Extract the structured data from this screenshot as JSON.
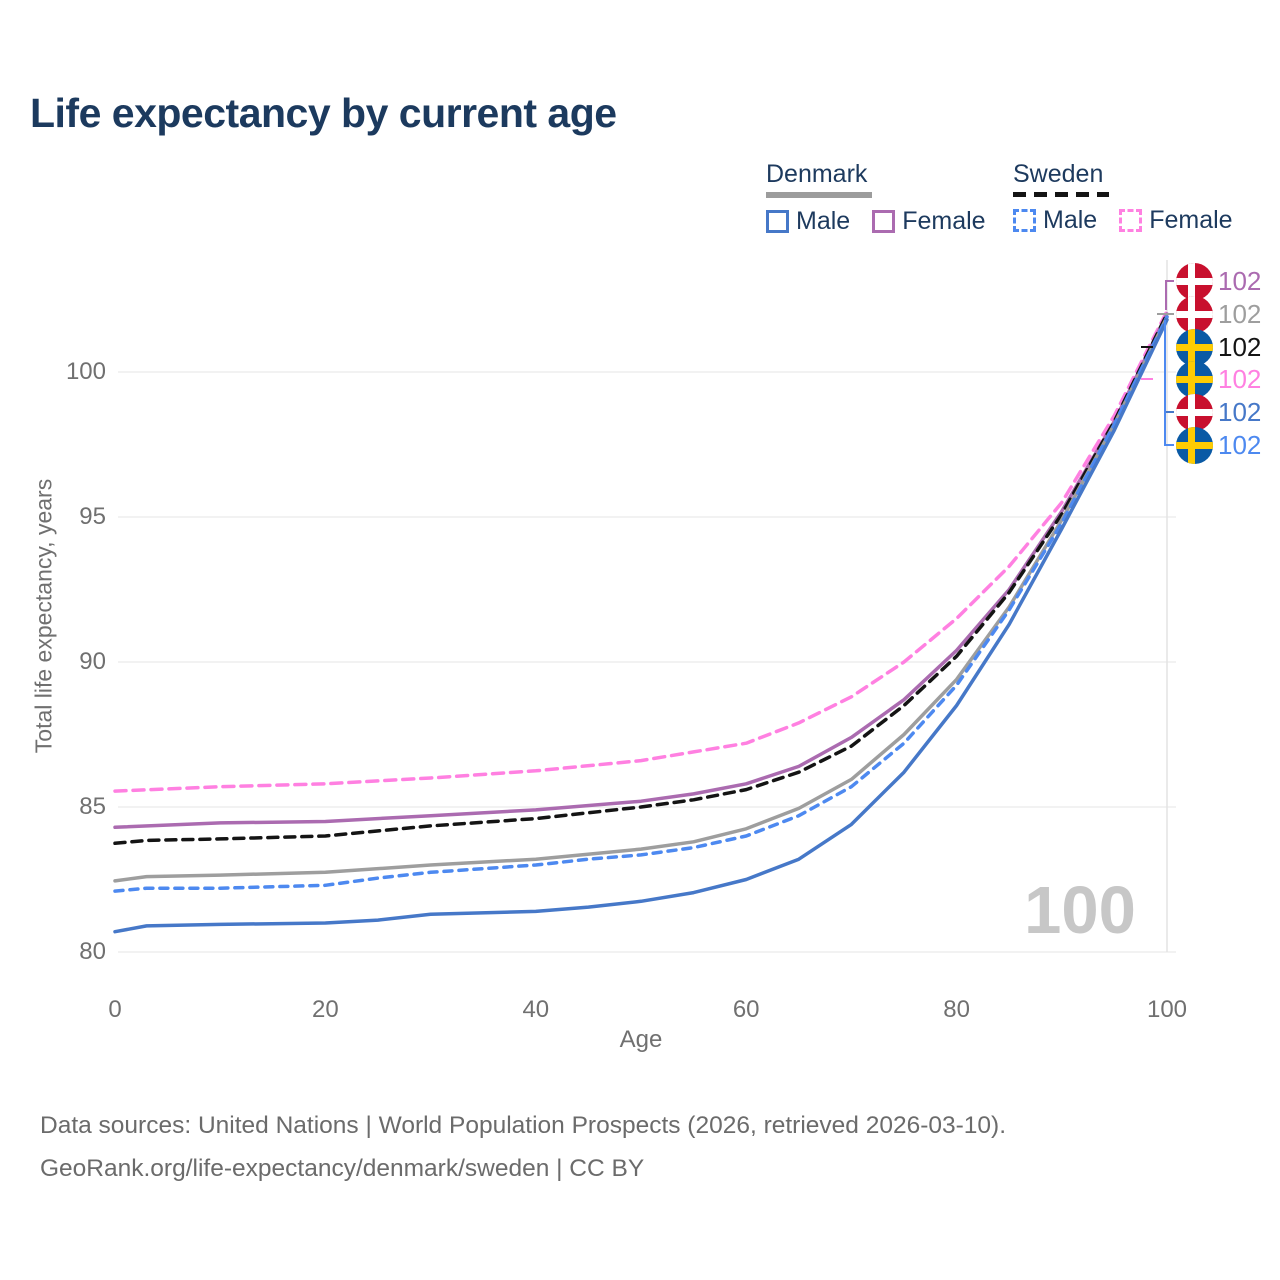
{
  "title": "Life expectancy by current age",
  "legend": {
    "denmark_label": "Denmark",
    "sweden_label": "Sweden",
    "male_label": "Male",
    "female_label": "Female"
  },
  "chart_data": {
    "type": "line",
    "title": "Life expectancy by current age",
    "xlabel": "Age",
    "ylabel": "Total life expectancy, years",
    "x_ticks": [
      0,
      20,
      40,
      60,
      80,
      100
    ],
    "y_ticks": [
      80,
      85,
      90,
      95,
      100
    ],
    "xlim": [
      0,
      100
    ],
    "ylim": [
      80,
      103
    ],
    "grid": "horizontal",
    "legend_position": "top-right",
    "grid_color": "#ededed",
    "crosshair_color": "#e3e3e3",
    "hover_age_indicator": "100",
    "series": [
      {
        "id": "denmark_male",
        "name": "Denmark Male",
        "country": "Denmark",
        "sex": "Male",
        "color": "#4678c8",
        "dash": null,
        "points": [
          [
            0,
            80.7
          ],
          [
            3,
            80.9
          ],
          [
            10,
            80.95
          ],
          [
            20,
            81.0
          ],
          [
            25,
            81.1
          ],
          [
            30,
            81.3
          ],
          [
            40,
            81.4
          ],
          [
            45,
            81.55
          ],
          [
            50,
            81.75
          ],
          [
            55,
            82.05
          ],
          [
            60,
            82.5
          ],
          [
            65,
            83.2
          ],
          [
            70,
            84.4
          ],
          [
            75,
            86.2
          ],
          [
            80,
            88.5
          ],
          [
            85,
            91.3
          ],
          [
            90,
            94.6
          ],
          [
            95,
            98.0
          ],
          [
            100,
            101.8
          ]
        ]
      },
      {
        "id": "denmark_female",
        "name": "Denmark Female",
        "country": "Denmark",
        "sex": "Female",
        "color": "#ab6bb0",
        "dash": null,
        "points": [
          [
            0,
            84.3
          ],
          [
            10,
            84.45
          ],
          [
            20,
            84.5
          ],
          [
            30,
            84.7
          ],
          [
            40,
            84.9
          ],
          [
            50,
            85.2
          ],
          [
            55,
            85.45
          ],
          [
            60,
            85.8
          ],
          [
            65,
            86.4
          ],
          [
            70,
            87.4
          ],
          [
            75,
            88.7
          ],
          [
            80,
            90.4
          ],
          [
            85,
            92.5
          ],
          [
            90,
            95.2
          ],
          [
            95,
            98.3
          ],
          [
            100,
            102.0
          ]
        ]
      },
      {
        "id": "denmark_total",
        "name": "Denmark (all)",
        "country": "Denmark",
        "sex": "Both",
        "color": "#9e9e9e",
        "dash": null,
        "points": [
          [
            0,
            82.45
          ],
          [
            3,
            82.6
          ],
          [
            10,
            82.65
          ],
          [
            20,
            82.75
          ],
          [
            30,
            83.0
          ],
          [
            40,
            83.2
          ],
          [
            50,
            83.55
          ],
          [
            55,
            83.8
          ],
          [
            60,
            84.25
          ],
          [
            65,
            84.95
          ],
          [
            70,
            85.95
          ],
          [
            75,
            87.5
          ],
          [
            80,
            89.4
          ],
          [
            85,
            91.9
          ],
          [
            90,
            94.9
          ],
          [
            95,
            98.2
          ],
          [
            100,
            101.9
          ]
        ]
      },
      {
        "id": "sweden_male",
        "name": "Sweden Male",
        "country": "Sweden",
        "sex": "Male",
        "color": "#4d89f0",
        "dash": "8 7",
        "points": [
          [
            0,
            82.1
          ],
          [
            3,
            82.2
          ],
          [
            10,
            82.2
          ],
          [
            20,
            82.3
          ],
          [
            25,
            82.55
          ],
          [
            30,
            82.75
          ],
          [
            40,
            83.0
          ],
          [
            45,
            83.2
          ],
          [
            50,
            83.35
          ],
          [
            55,
            83.6
          ],
          [
            60,
            84.0
          ],
          [
            65,
            84.7
          ],
          [
            70,
            85.7
          ],
          [
            75,
            87.2
          ],
          [
            80,
            89.2
          ],
          [
            85,
            91.8
          ],
          [
            90,
            94.8
          ],
          [
            95,
            98.2
          ],
          [
            100,
            101.9
          ]
        ]
      },
      {
        "id": "sweden_female",
        "name": "Sweden Female",
        "country": "Sweden",
        "sex": "Female",
        "color": "#ff80e1",
        "dash": "11 7",
        "points": [
          [
            0,
            85.55
          ],
          [
            10,
            85.7
          ],
          [
            20,
            85.8
          ],
          [
            30,
            86.0
          ],
          [
            40,
            86.25
          ],
          [
            50,
            86.6
          ],
          [
            55,
            86.9
          ],
          [
            60,
            87.2
          ],
          [
            65,
            87.9
          ],
          [
            70,
            88.8
          ],
          [
            75,
            90.0
          ],
          [
            80,
            91.5
          ],
          [
            85,
            93.3
          ],
          [
            90,
            95.5
          ],
          [
            95,
            98.5
          ],
          [
            100,
            102.1
          ]
        ]
      },
      {
        "id": "sweden_total",
        "name": "Sweden (all)",
        "country": "Sweden",
        "sex": "Both",
        "color": "#141414",
        "dash": "10 7",
        "points": [
          [
            0,
            83.75
          ],
          [
            3,
            83.85
          ],
          [
            10,
            83.9
          ],
          [
            20,
            84.0
          ],
          [
            30,
            84.35
          ],
          [
            40,
            84.6
          ],
          [
            50,
            85.0
          ],
          [
            55,
            85.25
          ],
          [
            60,
            85.6
          ],
          [
            65,
            86.2
          ],
          [
            70,
            87.1
          ],
          [
            75,
            88.5
          ],
          [
            80,
            90.2
          ],
          [
            85,
            92.4
          ],
          [
            90,
            95.1
          ],
          [
            95,
            98.3
          ],
          [
            100,
            102.0
          ]
        ]
      }
    ],
    "end_labels": [
      {
        "series": "denmark_female",
        "flag": "denmark",
        "value": "102"
      },
      {
        "series": "denmark_total",
        "flag": "denmark",
        "value": "102"
      },
      {
        "series": "sweden_total",
        "flag": "sweden",
        "value": "102"
      },
      {
        "series": "sweden_female",
        "flag": "sweden",
        "value": "102"
      },
      {
        "series": "denmark_male",
        "flag": "denmark",
        "value": "102"
      },
      {
        "series": "sweden_male",
        "flag": "sweden",
        "value": "102"
      }
    ]
  },
  "footer": {
    "line1": "Data sources: United Nations | World Population Prospects (2026, retrieved 2026-03-10).",
    "line2": "GeoRank.org/life-expectancy/denmark/sweden | CC BY"
  }
}
